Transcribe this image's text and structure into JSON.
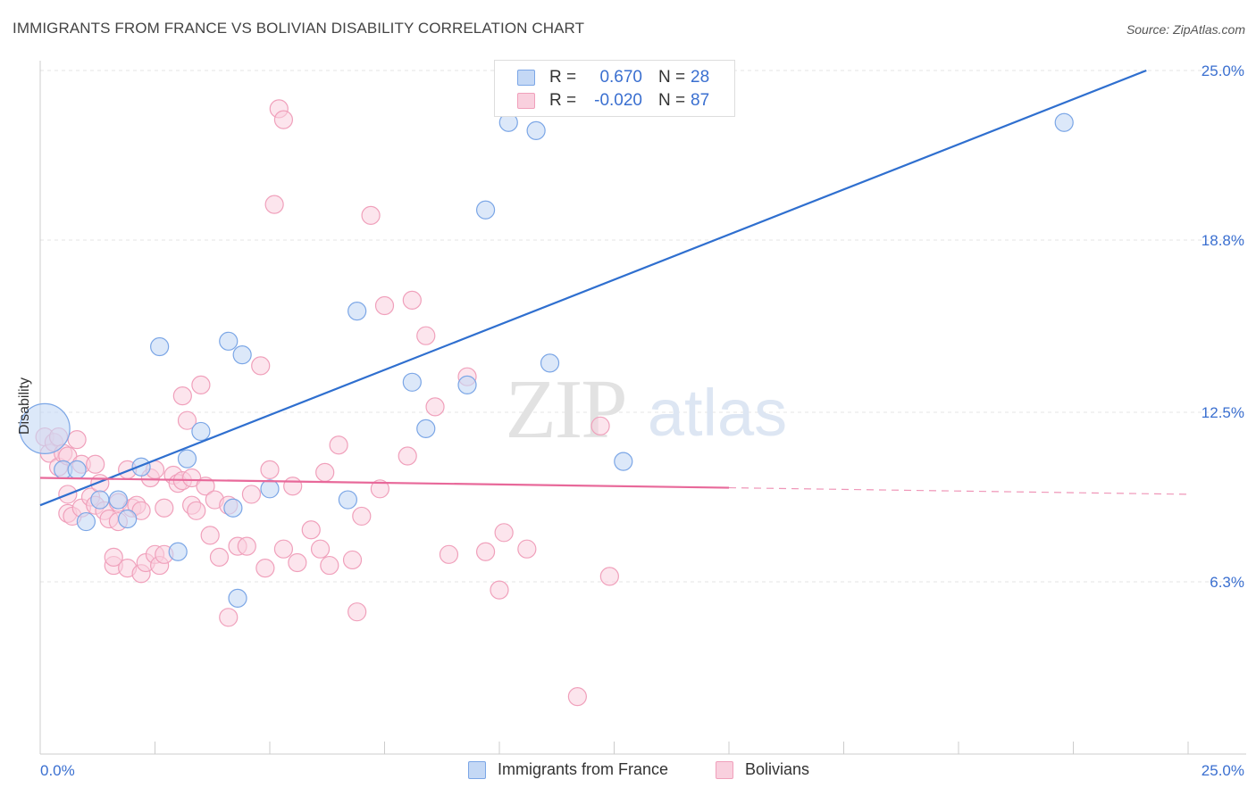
{
  "title": "IMMIGRANTS FROM FRANCE VS BOLIVIAN DISABILITY CORRELATION CHART",
  "source": "Source: ZipAtlas.com",
  "colors": {
    "france": "#7ba6e6",
    "france_fill": "#c4d8f5",
    "france_line": "#2f6fcf",
    "bolivians": "#f0a0bb",
    "bolivians_fill": "#f9d0de",
    "bolivians_line": "#e8699a",
    "tick_label": "#3a6fd0",
    "grid": "#e4e4e4"
  },
  "legend": {
    "rows": [
      {
        "r_label": "R =",
        "r_value": "0.670",
        "n_label": "N =",
        "n_value": "28"
      },
      {
        "r_label": "R =",
        "r_value": "-0.020",
        "n_label": "N =",
        "n_value": "87"
      }
    ]
  },
  "bottom_legend": {
    "france": "Immigrants from France",
    "bolivians": "Bolivians"
  },
  "watermark": {
    "zip": "ZIP",
    "atlas": "atlas"
  },
  "chart_data": {
    "type": "scatter",
    "xlabel": "",
    "ylabel": "Disability",
    "xlim": [
      0,
      25
    ],
    "ylim": [
      0,
      25
    ],
    "x_tick_labels": [
      "0.0%",
      "25.0%"
    ],
    "y_ticks": [
      6.3,
      12.5,
      18.8,
      25.0
    ],
    "y_tick_labels": [
      "6.3%",
      "12.5%",
      "18.8%",
      "25.0%"
    ],
    "grid": true,
    "legend_placement": "top-center",
    "series": [
      {
        "name": "Immigrants from France",
        "r": 0.67,
        "n": 28,
        "trend": {
          "x": [
            0,
            25
          ],
          "y": [
            9.1,
            25.6
          ],
          "dashed_from": null
        },
        "points": [
          [
            0.1,
            11.9
          ],
          [
            0.5,
            10.4
          ],
          [
            0.8,
            10.4
          ],
          [
            1.0,
            8.5
          ],
          [
            1.3,
            9.3
          ],
          [
            1.7,
            9.3
          ],
          [
            1.9,
            8.6
          ],
          [
            2.2,
            10.5
          ],
          [
            2.6,
            14.9
          ],
          [
            3.0,
            7.4
          ],
          [
            3.2,
            10.8
          ],
          [
            3.5,
            11.8
          ],
          [
            4.1,
            15.1
          ],
          [
            4.2,
            9.0
          ],
          [
            4.3,
            5.7
          ],
          [
            4.4,
            14.6
          ],
          [
            5.0,
            9.7
          ],
          [
            6.9,
            16.2
          ],
          [
            6.7,
            9.3
          ],
          [
            8.1,
            13.6
          ],
          [
            8.4,
            11.9
          ],
          [
            9.3,
            13.5
          ],
          [
            9.7,
            19.9
          ],
          [
            10.2,
            23.1
          ],
          [
            10.8,
            22.8
          ],
          [
            11.1,
            14.3
          ],
          [
            12.7,
            10.7
          ],
          [
            22.3,
            23.1
          ]
        ],
        "sizes": [
          28,
          10,
          10,
          10,
          10,
          10,
          10,
          10,
          10,
          10,
          10,
          10,
          10,
          10,
          10,
          10,
          10,
          10,
          10,
          10,
          10,
          10,
          10,
          10,
          10,
          10,
          10,
          10
        ]
      },
      {
        "name": "Bolivians",
        "r": -0.02,
        "n": 87,
        "trend": {
          "x": [
            0,
            25
          ],
          "y": [
            10.1,
            9.5
          ],
          "dashed_from": 15.0
        },
        "points": [
          [
            0.1,
            11.6
          ],
          [
            0.2,
            11.0
          ],
          [
            0.3,
            11.4
          ],
          [
            0.4,
            11.6
          ],
          [
            0.4,
            10.5
          ],
          [
            0.5,
            11.0
          ],
          [
            0.6,
            10.9
          ],
          [
            0.6,
            8.8
          ],
          [
            0.7,
            8.7
          ],
          [
            0.8,
            11.5
          ],
          [
            0.9,
            9.0
          ],
          [
            0.9,
            10.6
          ],
          [
            1.1,
            9.4
          ],
          [
            1.2,
            9.1
          ],
          [
            1.2,
            10.6
          ],
          [
            1.3,
            9.9
          ],
          [
            1.4,
            8.9
          ],
          [
            1.5,
            8.6
          ],
          [
            1.6,
            6.9
          ],
          [
            1.6,
            7.2
          ],
          [
            1.7,
            9.2
          ],
          [
            1.7,
            8.5
          ],
          [
            1.9,
            6.8
          ],
          [
            1.9,
            10.4
          ],
          [
            2.0,
            9.0
          ],
          [
            2.1,
            9.1
          ],
          [
            2.2,
            6.6
          ],
          [
            2.2,
            8.9
          ],
          [
            2.3,
            7.0
          ],
          [
            2.4,
            10.1
          ],
          [
            2.5,
            7.3
          ],
          [
            2.5,
            10.4
          ],
          [
            2.6,
            6.9
          ],
          [
            2.7,
            7.3
          ],
          [
            2.7,
            9.0
          ],
          [
            2.9,
            10.2
          ],
          [
            3.0,
            9.9
          ],
          [
            3.1,
            10.0
          ],
          [
            3.1,
            13.1
          ],
          [
            3.2,
            12.2
          ],
          [
            3.3,
            9.1
          ],
          [
            3.3,
            10.1
          ],
          [
            3.5,
            13.5
          ],
          [
            3.6,
            9.8
          ],
          [
            3.7,
            8.0
          ],
          [
            3.8,
            9.3
          ],
          [
            3.9,
            7.2
          ],
          [
            4.1,
            9.1
          ],
          [
            4.1,
            5.0
          ],
          [
            4.3,
            7.6
          ],
          [
            4.5,
            7.6
          ],
          [
            4.6,
            9.5
          ],
          [
            4.8,
            14.2
          ],
          [
            4.9,
            6.8
          ],
          [
            5.0,
            10.4
          ],
          [
            5.1,
            20.1
          ],
          [
            5.2,
            23.6
          ],
          [
            5.3,
            23.2
          ],
          [
            5.3,
            7.5
          ],
          [
            5.5,
            9.8
          ],
          [
            5.6,
            7.0
          ],
          [
            5.9,
            8.2
          ],
          [
            6.1,
            7.5
          ],
          [
            6.2,
            10.3
          ],
          [
            6.3,
            6.9
          ],
          [
            6.5,
            11.3
          ],
          [
            6.8,
            7.1
          ],
          [
            6.9,
            5.2
          ],
          [
            7.0,
            8.7
          ],
          [
            7.2,
            19.7
          ],
          [
            7.4,
            9.7
          ],
          [
            7.5,
            16.4
          ],
          [
            8.0,
            10.9
          ],
          [
            8.1,
            16.6
          ],
          [
            8.4,
            15.3
          ],
          [
            8.6,
            12.7
          ],
          [
            8.9,
            7.3
          ],
          [
            9.3,
            13.8
          ],
          [
            9.7,
            7.4
          ],
          [
            10.0,
            6.0
          ],
          [
            10.1,
            8.1
          ],
          [
            10.6,
            7.5
          ],
          [
            11.7,
            2.1
          ],
          [
            12.2,
            12.0
          ],
          [
            12.4,
            6.5
          ],
          [
            0.6,
            9.5
          ],
          [
            3.4,
            8.9
          ]
        ]
      }
    ]
  }
}
